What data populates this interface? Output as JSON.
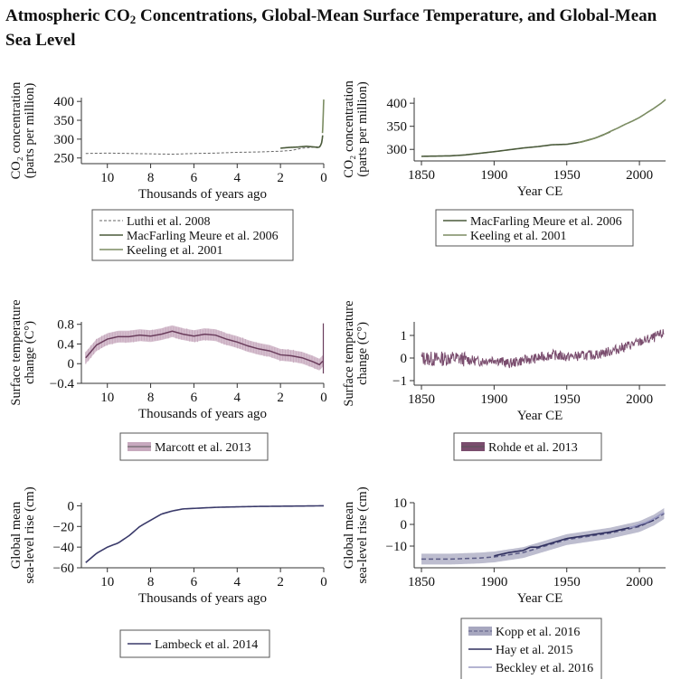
{
  "figure": {
    "title_pre": "Atmospheric CO",
    "title_sub": "2",
    "title_post": " Concentrations, Global-Mean Surface Temperature, and Global-Mean Sea Level"
  },
  "colors": {
    "luthi": "#666666",
    "macfarling": "#4a5a3a",
    "keeling": "#7b8c62",
    "marcott_line": "#6a3d5c",
    "marcott_band": "#c7a9be",
    "rohde": "#7a4d6e",
    "lambeck": "#3a3a6a",
    "kopp_band": "#a7a7bf",
    "kopp_line": "#5c5c86",
    "hay": "#2e2e5e",
    "beckley": "#9b9bc4"
  },
  "chart_data": [
    {
      "id": "co2_paleo",
      "type": "line",
      "ylabel_line1": "CO₂ concentration",
      "ylabel_line2": "(parts per million)",
      "xlabel": "Thousands of years ago",
      "xlim": [
        11.2,
        0
      ],
      "ylim": [
        235,
        410
      ],
      "xticks": [
        10,
        8,
        6,
        4,
        2,
        0
      ],
      "yticks": [
        250,
        300,
        350,
        400
      ],
      "series": [
        {
          "name": "Luthi et al. 2008",
          "style": "dashed",
          "color_key": "luthi",
          "x": [
            11,
            10,
            9,
            8,
            7,
            6,
            5,
            4,
            3,
            2,
            1.5,
            1,
            0.6,
            0.3
          ],
          "y": [
            262,
            263,
            262,
            261,
            260,
            262,
            263,
            265,
            266,
            268,
            270,
            276,
            278,
            280
          ]
        },
        {
          "name": "MacFarling Meure et al. 2006",
          "style": "solid",
          "color_key": "macfarling",
          "x": [
            2,
            1.6,
            1.2,
            1.0,
            0.8,
            0.6,
            0.4,
            0.3,
            0.2,
            0.15,
            0.1,
            0.07,
            0.05
          ],
          "y": [
            276,
            278,
            279,
            280,
            281,
            280,
            279,
            278,
            279,
            283,
            290,
            300,
            310
          ]
        },
        {
          "name": "Keeling et al. 2001",
          "style": "solid",
          "color_key": "keeling",
          "x": [
            0.06,
            0.05,
            0.04,
            0.03,
            0.02,
            0.01,
            0.0
          ],
          "y": [
            316,
            325,
            338,
            355,
            370,
            390,
            405
          ]
        }
      ],
      "legend": [
        {
          "name": "Luthi et al. 2008",
          "kind": "dashed",
          "color_key": "luthi"
        },
        {
          "name": "MacFarling Meure et al. 2006",
          "kind": "line",
          "color_key": "macfarling"
        },
        {
          "name": "Keeling et al. 2001",
          "kind": "line",
          "color_key": "keeling"
        }
      ],
      "legend_position": "below"
    },
    {
      "id": "co2_modern",
      "type": "line",
      "ylabel_line1": "CO₂ concentration",
      "ylabel_line2": "(parts per million)",
      "xlabel": "Year CE",
      "xlim": [
        1845,
        2018
      ],
      "ylim": [
        275,
        412
      ],
      "xticks": [
        1850,
        1900,
        1950,
        2000
      ],
      "yticks": [
        300,
        350,
        400
      ],
      "series": [
        {
          "name": "MacFarling Meure et al. 2006",
          "style": "solid",
          "color_key": "macfarling",
          "x": [
            1850,
            1870,
            1880,
            1900,
            1910,
            1920,
            1930,
            1940,
            1950,
            1960,
            1970,
            1980
          ],
          "y": [
            285,
            286,
            288,
            295,
            299,
            303,
            306,
            310,
            311,
            316,
            325,
            338
          ]
        },
        {
          "name": "Keeling et al. 2001",
          "style": "solid",
          "color_key": "keeling",
          "x": [
            1958,
            1965,
            1970,
            1975,
            1980,
            1985,
            1990,
            1995,
            2000,
            2005,
            2010,
            2015,
            2018
          ],
          "y": [
            315,
            320,
            325,
            331,
            339,
            346,
            354,
            361,
            369,
            379,
            389,
            400,
            408
          ]
        }
      ],
      "legend": [
        {
          "name": "MacFarling Meure et al. 2006",
          "kind": "line",
          "color_key": "macfarling"
        },
        {
          "name": "Keeling et al. 2001",
          "kind": "line",
          "color_key": "keeling"
        }
      ],
      "legend_position": "below"
    },
    {
      "id": "temp_paleo",
      "type": "line",
      "ylabel_line1": "Surface temperature",
      "ylabel_line2": "change (C°)",
      "xlabel": "Thousands of years ago",
      "xlim": [
        11.2,
        0
      ],
      "ylim": [
        -0.4,
        0.85
      ],
      "xticks": [
        10,
        8,
        6,
        4,
        2,
        0
      ],
      "yticks": [
        -0.4,
        0,
        0.4,
        0.8
      ],
      "series": [
        {
          "name": "Marcott et al. 2013",
          "style": "band",
          "color_key": "marcott_line",
          "x": [
            11,
            10.5,
            10,
            9.5,
            9,
            8.5,
            8,
            7.5,
            7,
            6.5,
            6,
            5.5,
            5,
            4.5,
            4,
            3.5,
            3,
            2.5,
            2,
            1.5,
            1,
            0.5,
            0.2,
            0.05
          ],
          "y": [
            0.12,
            0.38,
            0.5,
            0.55,
            0.55,
            0.58,
            0.56,
            0.6,
            0.66,
            0.6,
            0.56,
            0.6,
            0.58,
            0.5,
            0.44,
            0.36,
            0.3,
            0.26,
            0.18,
            0.16,
            0.12,
            0.04,
            -0.02,
            0.05
          ],
          "uncertainty": 0.12
        }
      ],
      "legend": [
        {
          "name": "Marcott et al. 2013",
          "kind": "band",
          "color_key": "marcott_band"
        }
      ],
      "legend_position": "below"
    },
    {
      "id": "temp_modern",
      "type": "line",
      "ylabel_line1": "Surface temperature",
      "ylabel_line2": "change (C°)",
      "xlabel": "Year CE",
      "xlim": [
        1845,
        2018
      ],
      "ylim": [
        -1.2,
        1.6
      ],
      "xticks": [
        1850,
        1900,
        1950,
        2000
      ],
      "yticks": [
        -1,
        0,
        1
      ],
      "series": [
        {
          "name": "Rohde et al. 2013",
          "style": "noisy",
          "color_key": "rohde",
          "x": [
            1850,
            1860,
            1870,
            1880,
            1890,
            1900,
            1910,
            1920,
            1930,
            1940,
            1950,
            1960,
            1970,
            1980,
            1990,
            2000,
            2010,
            2017
          ],
          "y": [
            0.0,
            -0.05,
            0.0,
            -0.05,
            -0.15,
            -0.05,
            -0.25,
            -0.1,
            0.0,
            0.15,
            0.05,
            0.1,
            0.15,
            0.3,
            0.5,
            0.7,
            0.9,
            1.1
          ],
          "noise": 0.22
        }
      ],
      "legend": [
        {
          "name": "Rohde et al. 2013",
          "kind": "band",
          "color_key": "rohde"
        }
      ],
      "legend_position": "below"
    },
    {
      "id": "sea_paleo",
      "type": "line",
      "ylabel_line1": "Global mean",
      "ylabel_line2": "sea-level rise (cm)",
      "xlabel": "Thousands of years ago",
      "xlim": [
        11.2,
        0
      ],
      "ylim": [
        -60,
        3
      ],
      "xticks": [
        10,
        8,
        6,
        4,
        2,
        0
      ],
      "yticks": [
        -60,
        -40,
        -20,
        0
      ],
      "series": [
        {
          "name": "Lambeck et al. 2014",
          "style": "solid",
          "color_key": "lambeck",
          "x": [
            11,
            10.5,
            10,
            9.5,
            9,
            8.5,
            8,
            7.5,
            7,
            6.5,
            6,
            5,
            4,
            3,
            2,
            1,
            0
          ],
          "y": [
            -55,
            -46,
            -40,
            -36,
            -29,
            -20,
            -14,
            -8,
            -5,
            -3,
            -2.5,
            -1.5,
            -1,
            -0.6,
            -0.4,
            -0.2,
            0
          ]
        }
      ],
      "legend": [
        {
          "name": "Lambeck et al. 2014",
          "kind": "line",
          "color_key": "lambeck"
        }
      ],
      "legend_position": "below"
    },
    {
      "id": "sea_modern",
      "type": "line",
      "ylabel_line1": "Global mean",
      "ylabel_line2": "sea-level rise (cm)",
      "xlabel": "Year CE",
      "xlim": [
        1845,
        2018
      ],
      "ylim": [
        -20,
        10
      ],
      "xticks": [
        1850,
        1900,
        1950,
        2000
      ],
      "yticks": [
        -10,
        0,
        10
      ],
      "series": [
        {
          "name": "Kopp et al. 2016",
          "style": "band",
          "color_key": "kopp_line",
          "x": [
            1850,
            1870,
            1890,
            1900,
            1910,
            1920,
            1930,
            1940,
            1950,
            1960,
            1970,
            1980,
            1990,
            2000,
            2010,
            2017
          ],
          "y": [
            -16,
            -16,
            -15.5,
            -15,
            -14,
            -13,
            -11,
            -9,
            -7,
            -6,
            -5,
            -4,
            -2.5,
            -1,
            2,
            5
          ],
          "uncertainty": 2.5
        },
        {
          "name": "Hay et al. 2015",
          "style": "solid",
          "color_key": "hay",
          "x": [
            1900,
            1910,
            1920,
            1925,
            1930,
            1940,
            1950,
            1960,
            1970,
            1980,
            1990,
            2000,
            2010
          ],
          "y": [
            -14.5,
            -13,
            -12,
            -10.5,
            -10.5,
            -8.5,
            -6.5,
            -5.5,
            -4.5,
            -3.5,
            -2,
            -0.5,
            2
          ]
        },
        {
          "name": "Beckley et al. 2016",
          "style": "solid",
          "color_key": "beckley",
          "x": [
            1993,
            1996,
            2000,
            2004,
            2008,
            2012,
            2015,
            2017
          ],
          "y": [
            -1.5,
            -1,
            0,
            0.8,
            2,
            3.5,
            4.8,
            5.5
          ]
        }
      ],
      "legend": [
        {
          "name": "Kopp et al. 2016",
          "kind": "band",
          "color_key": "kopp_band"
        },
        {
          "name": "Hay et al. 2015",
          "kind": "line",
          "color_key": "hay"
        },
        {
          "name": "Beckley et al. 2016",
          "kind": "line",
          "color_key": "beckley"
        }
      ],
      "legend_position": "below"
    }
  ]
}
